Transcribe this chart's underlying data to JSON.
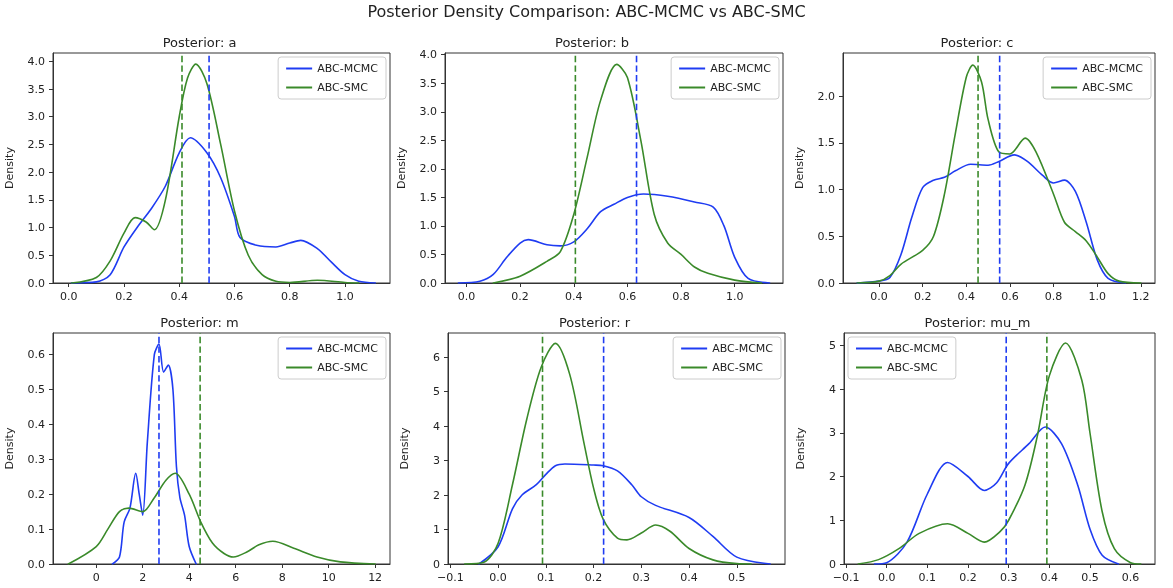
{
  "chart_data": [
    {
      "type": "line",
      "title": "Posterior: a",
      "ylabel": "Density",
      "annotations": [
        "Posterior Density Comparison: ABC-MCMC vs ABC-SMC"
      ],
      "xlim": [
        -0.057,
        1.163
      ],
      "ylim": [
        0,
        4.15
      ],
      "xticks": [
        {
          "value": 0,
          "label": "0.0"
        },
        0.2,
        0.4,
        0.6,
        0.8,
        {
          "value": 1,
          "label": "1.0"
        }
      ],
      "yticks": [
        {
          "value": 0,
          "label": "0.0"
        },
        0.5,
        {
          "value": 1,
          "label": "1.0"
        },
        1.5,
        {
          "value": 2,
          "label": "2.0"
        },
        2.5,
        {
          "value": 3,
          "label": "3.0"
        },
        3.5,
        {
          "value": 4,
          "label": "4.0"
        }
      ],
      "grid": false,
      "legend": "top right",
      "marker": "none",
      "line_style": "solid",
      "series": [
        {
          "name": "ABC-MCMC",
          "color": "#1f3cf2",
          "x": [
            0.01,
            0.1,
            0.15,
            0.2,
            0.25,
            0.3,
            0.35,
            0.4,
            0.44,
            0.5,
            0.55,
            0.6,
            0.62,
            0.68,
            0.75,
            0.8,
            0.84,
            0.9,
            0.95,
            1.0,
            1.05,
            1.11
          ],
          "values": [
            0,
            0.02,
            0.15,
            0.65,
            1.02,
            1.35,
            1.75,
            2.35,
            2.62,
            2.35,
            1.9,
            1.2,
            0.82,
            0.68,
            0.65,
            0.72,
            0.77,
            0.62,
            0.38,
            0.15,
            0.03,
            0
          ]
        },
        {
          "name": "ABC-SMC",
          "color": "#3a8a2a",
          "x": [
            0.01,
            0.1,
            0.15,
            0.2,
            0.24,
            0.28,
            0.31,
            0.35,
            0.4,
            0.43,
            0.46,
            0.5,
            0.55,
            0.6,
            0.65,
            0.7,
            0.75,
            0.8,
            0.9,
            1.0,
            1.05
          ],
          "values": [
            0,
            0.1,
            0.4,
            0.9,
            1.18,
            1.1,
            0.96,
            1.5,
            3.0,
            3.7,
            3.95,
            3.6,
            2.5,
            1.3,
            0.5,
            0.15,
            0.03,
            0.01,
            0.05,
            0.01,
            0
          ]
        }
      ],
      "ref_lines": [
        {
          "axis": "x",
          "value": 0.41,
          "color": "#3a8a2a",
          "line_style": "dashed"
        },
        {
          "axis": "x",
          "value": 0.508,
          "color": "#1f3cf2",
          "line_style": "dashed"
        }
      ]
    },
    {
      "type": "line",
      "title": "Posterior: b",
      "ylabel": "Density",
      "xlim": [
        -0.08,
        1.18
      ],
      "ylim": [
        0,
        4.03
      ],
      "xticks": [
        {
          "value": 0,
          "label": "0.0"
        },
        0.2,
        0.4,
        0.6,
        0.8,
        {
          "value": 1,
          "label": "1.0"
        }
      ],
      "yticks": [
        {
          "value": 0,
          "label": "0.0"
        },
        0.5,
        {
          "value": 1,
          "label": "1.0"
        },
        1.5,
        {
          "value": 2,
          "label": "2.0"
        },
        2.5,
        {
          "value": 3,
          "label": "3.0"
        },
        3.5,
        {
          "value": 4,
          "label": "4.0"
        }
      ],
      "grid": false,
      "legend": "top right",
      "marker": "none",
      "line_style": "solid",
      "series": [
        {
          "name": "ABC-MCMC",
          "color": "#1f3cf2",
          "x": [
            -0.03,
            0.05,
            0.1,
            0.15,
            0.2,
            0.23,
            0.3,
            0.35,
            0.4,
            0.45,
            0.5,
            0.55,
            0.6,
            0.66,
            0.75,
            0.85,
            0.92,
            0.96,
            1.0,
            1.05,
            1.13
          ],
          "values": [
            0,
            0.03,
            0.15,
            0.45,
            0.7,
            0.76,
            0.67,
            0.65,
            0.72,
            0.95,
            1.25,
            1.38,
            1.5,
            1.56,
            1.52,
            1.42,
            1.33,
            1.0,
            0.45,
            0.08,
            0
          ]
        },
        {
          "name": "ABC-SMC",
          "color": "#3a8a2a",
          "x": [
            0.1,
            0.2,
            0.3,
            0.35,
            0.4,
            0.45,
            0.5,
            0.56,
            0.6,
            0.65,
            0.7,
            0.75,
            0.8,
            0.85,
            0.9,
            1.0,
            1.1
          ],
          "values": [
            0,
            0.12,
            0.38,
            0.55,
            1.2,
            2.2,
            3.2,
            3.83,
            3.6,
            2.5,
            1.2,
            0.7,
            0.5,
            0.28,
            0.17,
            0.05,
            0
          ]
        }
      ],
      "ref_lines": [
        {
          "axis": "x",
          "value": 0.406,
          "color": "#3a8a2a",
          "line_style": "dashed"
        },
        {
          "axis": "x",
          "value": 0.634,
          "color": "#1f3cf2",
          "line_style": "dashed"
        }
      ]
    },
    {
      "type": "line",
      "title": "Posterior: c",
      "ylabel": "Density",
      "xlim": [
        -0.165,
        1.265
      ],
      "ylim": [
        0,
        2.46
      ],
      "xticks": [
        {
          "value": 0,
          "label": "0.0"
        },
        0.2,
        0.4,
        0.6,
        0.8,
        {
          "value": 1,
          "label": "1.0"
        },
        {
          "value": 1.2,
          "label": "1.2"
        }
      ],
      "yticks": [
        {
          "value": 0,
          "label": "0.0"
        },
        0.5,
        {
          "value": 1,
          "label": "1.0"
        },
        1.5,
        {
          "value": 2,
          "label": "2.0"
        }
      ],
      "grid": false,
      "legend": "top right",
      "marker": "none",
      "line_style": "solid",
      "series": [
        {
          "name": "ABC-MCMC",
          "color": "#1f3cf2",
          "x": [
            -0.1,
            0,
            0.05,
            0.1,
            0.15,
            0.2,
            0.25,
            0.3,
            0.35,
            0.42,
            0.5,
            0.55,
            0.62,
            0.68,
            0.75,
            0.8,
            0.85,
            0.9,
            0.95,
            1.0,
            1.05,
            1.13
          ],
          "values": [
            0,
            0.02,
            0.06,
            0.3,
            0.7,
            1.02,
            1.1,
            1.13,
            1.2,
            1.27,
            1.26,
            1.3,
            1.37,
            1.3,
            1.15,
            1.07,
            1.1,
            0.98,
            0.65,
            0.25,
            0.05,
            0
          ]
        },
        {
          "name": "ABC-SMC",
          "color": "#3a8a2a",
          "x": [
            -0.1,
            0,
            0.05,
            0.1,
            0.2,
            0.25,
            0.3,
            0.35,
            0.4,
            0.43,
            0.47,
            0.5,
            0.55,
            0.6,
            0.67,
            0.72,
            0.8,
            0.85,
            0.9,
            0.95,
            1.0,
            1.05,
            1.1,
            1.2
          ],
          "values": [
            0,
            0.02,
            0.08,
            0.2,
            0.35,
            0.5,
            0.95,
            1.6,
            2.2,
            2.33,
            2.15,
            1.75,
            1.4,
            1.38,
            1.55,
            1.4,
            0.95,
            0.65,
            0.55,
            0.45,
            0.28,
            0.1,
            0.02,
            0
          ]
        }
      ],
      "ref_lines": [
        {
          "axis": "x",
          "value": 0.454,
          "color": "#3a8a2a",
          "line_style": "dashed"
        },
        {
          "axis": "x",
          "value": 0.553,
          "color": "#1f3cf2",
          "line_style": "dashed"
        }
      ]
    },
    {
      "type": "line",
      "title": "Posterior: m",
      "ylabel": "Density",
      "xlim": [
        -1.86,
        12.64
      ],
      "ylim": [
        0,
        0.662
      ],
      "xticks": [
        0,
        2,
        4,
        6,
        8,
        10,
        12
      ],
      "yticks": [
        {
          "value": 0,
          "label": "0.0"
        },
        0.1,
        0.2,
        0.3,
        0.4,
        0.5,
        0.6
      ],
      "grid": false,
      "legend": "top right",
      "marker": "none",
      "line_style": "solid",
      "series": [
        {
          "name": "ABC-MCMC",
          "color": "#1f3cf2",
          "x": [
            0.7,
            1.0,
            1.2,
            1.45,
            1.7,
            1.85,
            2.0,
            2.2,
            2.5,
            2.7,
            2.9,
            3.1,
            3.3,
            3.45,
            3.6,
            3.8,
            4.0,
            4.3
          ],
          "values": [
            0,
            0.02,
            0.12,
            0.16,
            0.26,
            0.2,
            0.14,
            0.35,
            0.6,
            0.63,
            0.55,
            0.57,
            0.5,
            0.28,
            0.19,
            0.14,
            0.05,
            0
          ]
        },
        {
          "name": "ABC-SMC",
          "color": "#3a8a2a",
          "x": [
            -1.2,
            0,
            0.5,
            1.0,
            1.4,
            2.0,
            2.5,
            3.0,
            3.4,
            4.0,
            4.5,
            5.0,
            5.5,
            5.9,
            6.5,
            7.0,
            7.6,
            8.5,
            9.5,
            10.5,
            12.0
          ],
          "values": [
            0,
            0.05,
            0.1,
            0.15,
            0.16,
            0.15,
            0.19,
            0.24,
            0.26,
            0.2,
            0.12,
            0.06,
            0.03,
            0.02,
            0.035,
            0.055,
            0.065,
            0.045,
            0.02,
            0.006,
            0
          ]
        }
      ],
      "ref_lines": [
        {
          "axis": "x",
          "value": 2.7,
          "color": "#1f3cf2",
          "line_style": "dashed"
        },
        {
          "axis": "x",
          "value": 4.47,
          "color": "#3a8a2a",
          "line_style": "dashed"
        }
      ]
    },
    {
      "type": "line",
      "title": "Posterior: r",
      "ylabel": "Density",
      "xlim": [
        -0.105,
        0.601
      ],
      "ylim": [
        0,
        6.7
      ],
      "xticks": [
        {
          "value": -0.1,
          "label": "−0.1"
        },
        {
          "value": 0,
          "label": "0.0"
        },
        0.1,
        0.2,
        0.3,
        0.4,
        0.5
      ],
      "yticks": [
        0,
        1,
        2,
        3,
        4,
        5,
        6
      ],
      "grid": false,
      "legend": "top right",
      "marker": "none",
      "line_style": "solid",
      "series": [
        {
          "name": "ABC-MCMC",
          "color": "#1f3cf2",
          "x": [
            -0.04,
            0,
            0.03,
            0.05,
            0.08,
            0.1,
            0.12,
            0.14,
            0.2,
            0.22,
            0.25,
            0.28,
            0.3,
            0.33,
            0.4,
            0.45,
            0.5,
            0.57
          ],
          "values": [
            0,
            0.5,
            1.6,
            2.0,
            2.3,
            2.6,
            2.85,
            2.9,
            2.87,
            2.85,
            2.7,
            2.3,
            1.95,
            1.7,
            1.35,
            0.8,
            0.2,
            0
          ]
        },
        {
          "name": "ABC-SMC",
          "color": "#3a8a2a",
          "x": [
            -0.07,
            -0.03,
            0,
            0.03,
            0.06,
            0.09,
            0.12,
            0.15,
            0.18,
            0.2,
            0.22,
            0.25,
            0.27,
            0.3,
            0.33,
            0.36,
            0.4,
            0.45,
            0.5,
            0.53
          ],
          "values": [
            0,
            0.05,
            0.6,
            2.3,
            4.2,
            5.7,
            6.4,
            5.5,
            3.5,
            2.2,
            1.3,
            0.75,
            0.7,
            0.9,
            1.13,
            0.95,
            0.45,
            0.12,
            0.01,
            0
          ]
        }
      ],
      "ref_lines": [
        {
          "axis": "x",
          "value": 0.093,
          "color": "#3a8a2a",
          "line_style": "dashed"
        },
        {
          "axis": "x",
          "value": 0.221,
          "color": "#1f3cf2",
          "line_style": "dashed"
        }
      ]
    },
    {
      "type": "line",
      "title": "Posterior: mu_m",
      "ylabel": "Density",
      "xlim": [
        -0.105,
        0.66
      ],
      "ylim": [
        0,
        5.28
      ],
      "xticks": [
        {
          "value": -0.1,
          "label": "−0.1"
        },
        {
          "value": 0,
          "label": "0.0"
        },
        0.1,
        0.2,
        0.3,
        0.4,
        0.5,
        0.6
      ],
      "yticks": [
        0,
        1,
        2,
        3,
        4,
        5
      ],
      "grid": false,
      "legend": "top left",
      "marker": "none",
      "line_style": "solid",
      "series": [
        {
          "name": "ABC-MCMC",
          "color": "#1f3cf2",
          "x": [
            -0.03,
            0,
            0.05,
            0.1,
            0.15,
            0.2,
            0.24,
            0.27,
            0.3,
            0.35,
            0.39,
            0.43,
            0.47,
            0.5,
            0.53,
            0.57
          ],
          "values": [
            0,
            0.03,
            0.5,
            1.6,
            2.32,
            2.0,
            1.68,
            1.85,
            2.3,
            2.75,
            3.13,
            2.75,
            1.8,
            0.8,
            0.2,
            0
          ]
        },
        {
          "name": "ABC-SMC",
          "color": "#3a8a2a",
          "x": [
            -0.07,
            -0.02,
            0.03,
            0.08,
            0.15,
            0.2,
            0.24,
            0.28,
            0.3,
            0.34,
            0.37,
            0.4,
            0.44,
            0.48,
            0.5,
            0.53,
            0.56,
            0.6,
            0.625
          ],
          "values": [
            0,
            0.1,
            0.35,
            0.7,
            0.92,
            0.7,
            0.5,
            0.75,
            1.0,
            1.8,
            2.9,
            4.3,
            5.05,
            4.2,
            3.0,
            1.2,
            0.35,
            0.03,
            0
          ]
        }
      ],
      "ref_lines": [
        {
          "axis": "x",
          "value": 0.294,
          "color": "#1f3cf2",
          "line_style": "dashed"
        },
        {
          "axis": "x",
          "value": 0.394,
          "color": "#3a8a2a",
          "line_style": "dashed"
        }
      ]
    }
  ]
}
